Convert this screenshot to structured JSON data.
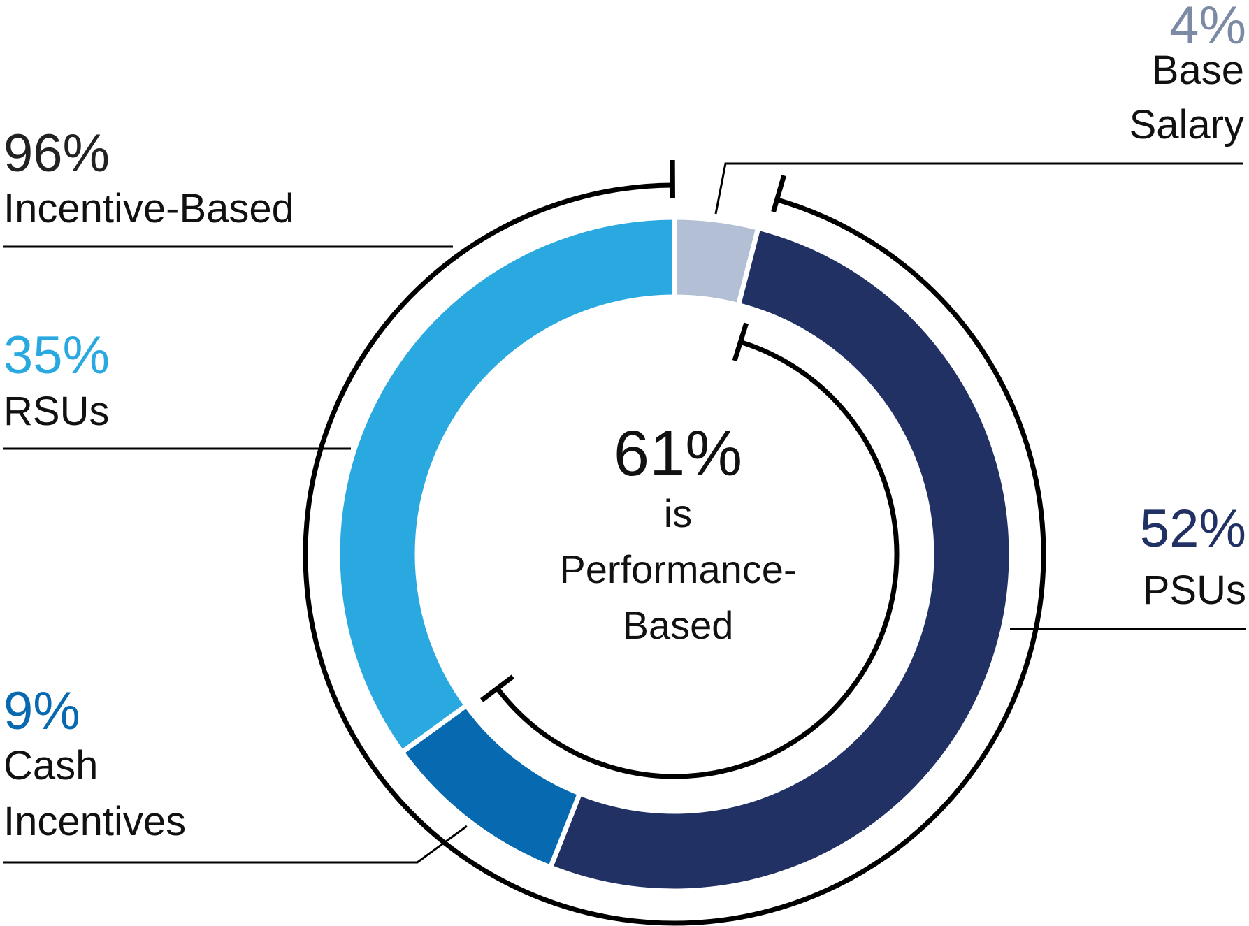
{
  "chart_data": {
    "type": "pie",
    "categories": [
      "Base Salary",
      "PSUs",
      "Cash Incentives",
      "RSUs"
    ],
    "values": [
      4,
      52,
      9,
      35
    ],
    "colors": [
      "#b2bfd4",
      "#223163",
      "#0769b0",
      "#2aa9e0"
    ],
    "value_labels": [
      "4%",
      "52%",
      "9%",
      "35%"
    ],
    "category_labels": [
      [
        "Base",
        "Salary"
      ],
      [
        "PSUs"
      ],
      [
        "Cash",
        "Incentives"
      ],
      [
        "RSUs"
      ]
    ],
    "groups": [
      {
        "value": "96%",
        "label": "Incentive-Based",
        "covers": [
          "PSUs",
          "Cash Incentives",
          "RSUs"
        ]
      },
      {
        "value": "61%",
        "label": [
          "is",
          "Performance-",
          "Based"
        ],
        "covers": [
          "PSUs",
          "Cash Incentives"
        ]
      }
    ]
  }
}
